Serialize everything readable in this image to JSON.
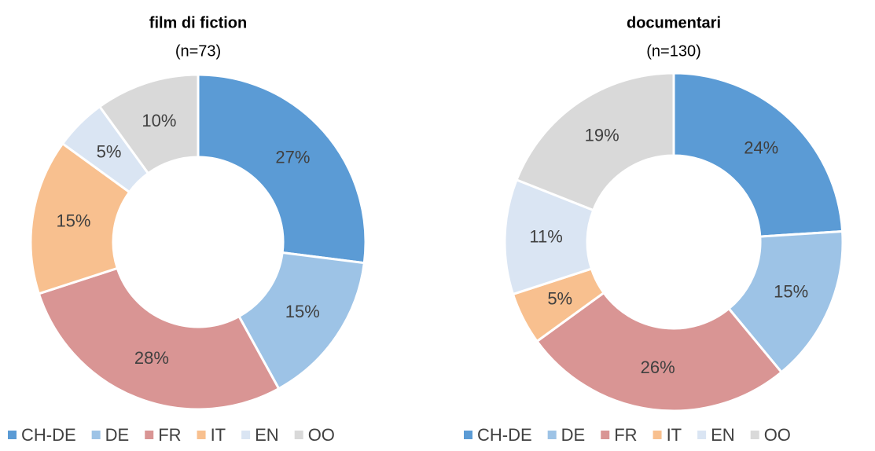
{
  "chart_data": [
    {
      "type": "donut",
      "title": "film di fiction",
      "subtitle": "(n=73)",
      "categories": [
        "CH-DE",
        "DE",
        "FR",
        "IT",
        "EN",
        "OO"
      ],
      "values": [
        27,
        15,
        28,
        15,
        5,
        10
      ],
      "value_labels": [
        "27%",
        "15%",
        "28%",
        "15%",
        "5%",
        "10%"
      ],
      "colors": [
        "#5b9bd5",
        "#9dc3e6",
        "#d99594",
        "#f8c08f",
        "#dae5f3",
        "#d9d9d9"
      ],
      "legend": "bottom"
    },
    {
      "type": "donut",
      "title": "documentari",
      "subtitle": "(n=130)",
      "categories": [
        "CH-DE",
        "DE",
        "FR",
        "IT",
        "EN",
        "OO"
      ],
      "values": [
        24,
        15,
        26,
        5,
        11,
        19
      ],
      "value_labels": [
        "24%",
        "15%",
        "26%",
        "5%",
        "11%",
        "19%"
      ],
      "colors": [
        "#5b9bd5",
        "#9dc3e6",
        "#d99594",
        "#f8c08f",
        "#dae5f3",
        "#d9d9d9"
      ],
      "legend": "bottom"
    }
  ]
}
